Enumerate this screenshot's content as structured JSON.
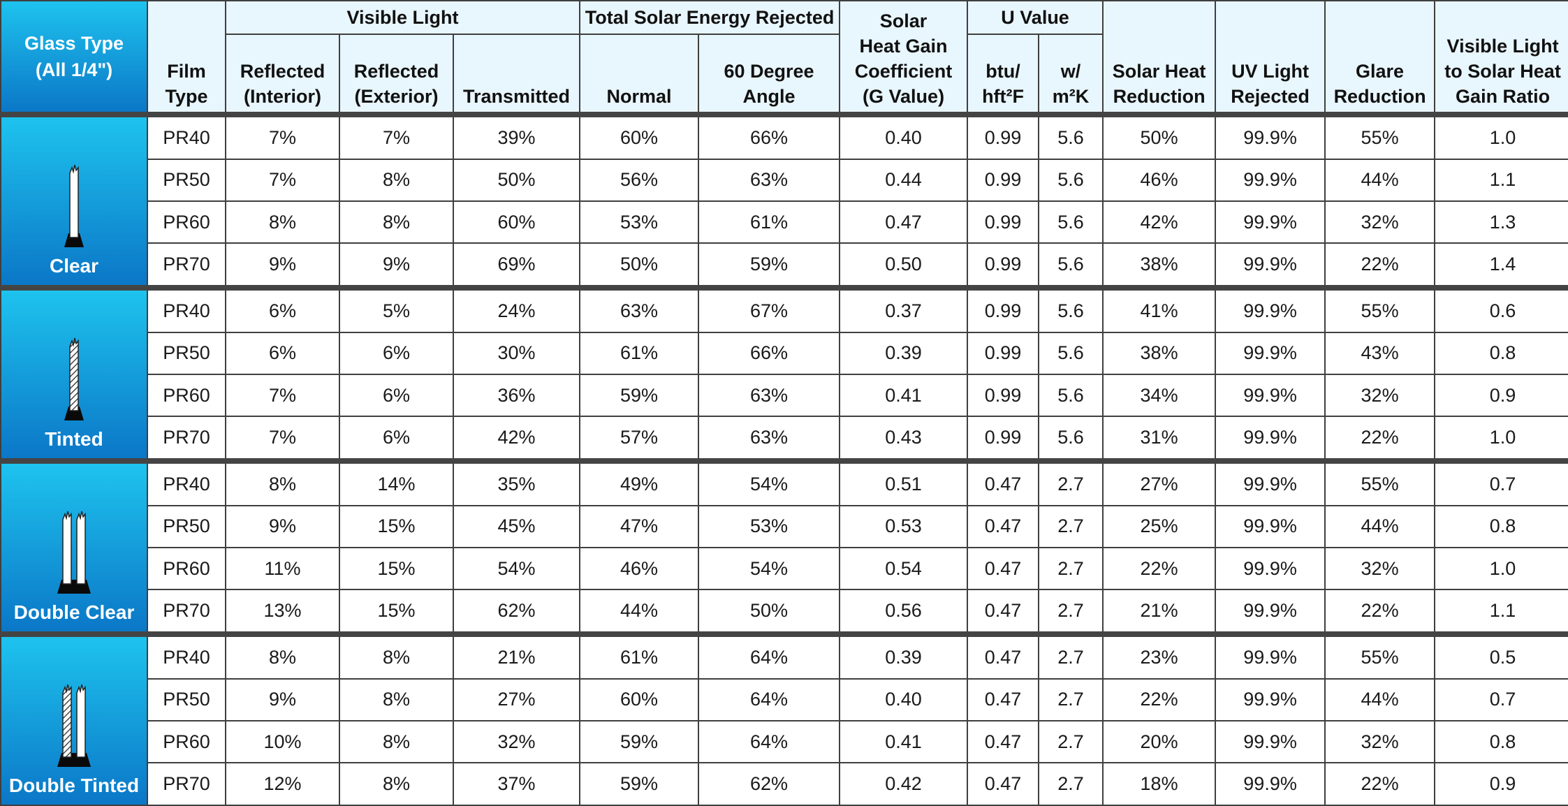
{
  "headers": {
    "glass_type": [
      "Glass Type",
      "(All 1/4\")"
    ],
    "film_type": [
      "Film",
      "Type"
    ],
    "visible_light": "Visible Light",
    "reflected_interior": [
      "Reflected",
      "(Interior)"
    ],
    "reflected_exterior": [
      "Reflected",
      "(Exterior)"
    ],
    "transmitted": "Transmitted",
    "total_solar_energy_rejected": "Total Solar Energy Rejected",
    "normal": "Normal",
    "sixty_degree": [
      "60 Degree",
      "Angle"
    ],
    "shgc": [
      "Solar",
      "Heat Gain",
      "Coefficient",
      "(G Value)"
    ],
    "u_value": "U Value",
    "btu": [
      "btu/",
      "hft²F"
    ],
    "wm2k": [
      "w/",
      "m²K"
    ],
    "solar_heat_reduction": [
      "Solar Heat",
      "Reduction"
    ],
    "uv_light_rejected": [
      "UV Light",
      "Rejected"
    ],
    "glare_reduction": [
      "Glare",
      "Reduction"
    ],
    "vl_to_shg_ratio": [
      "Visible Light",
      "to Solar Heat",
      "Gain Ratio"
    ]
  },
  "groups": [
    {
      "glass_type": "Clear",
      "icon": "single-clear-glass-icon",
      "rows": [
        [
          "PR40",
          "7%",
          "7%",
          "39%",
          "60%",
          "66%",
          "0.40",
          "0.99",
          "5.6",
          "50%",
          "99.9%",
          "55%",
          "1.0"
        ],
        [
          "PR50",
          "7%",
          "8%",
          "50%",
          "56%",
          "63%",
          "0.44",
          "0.99",
          "5.6",
          "46%",
          "99.9%",
          "44%",
          "1.1"
        ],
        [
          "PR60",
          "8%",
          "8%",
          "60%",
          "53%",
          "61%",
          "0.47",
          "0.99",
          "5.6",
          "42%",
          "99.9%",
          "32%",
          "1.3"
        ],
        [
          "PR70",
          "9%",
          "9%",
          "69%",
          "50%",
          "59%",
          "0.50",
          "0.99",
          "5.6",
          "38%",
          "99.9%",
          "22%",
          "1.4"
        ]
      ]
    },
    {
      "glass_type": "Tinted",
      "icon": "single-tinted-glass-icon",
      "rows": [
        [
          "PR40",
          "6%",
          "5%",
          "24%",
          "63%",
          "67%",
          "0.37",
          "0.99",
          "5.6",
          "41%",
          "99.9%",
          "55%",
          "0.6"
        ],
        [
          "PR50",
          "6%",
          "6%",
          "30%",
          "61%",
          "66%",
          "0.39",
          "0.99",
          "5.6",
          "38%",
          "99.9%",
          "43%",
          "0.8"
        ],
        [
          "PR60",
          "7%",
          "6%",
          "36%",
          "59%",
          "63%",
          "0.41",
          "0.99",
          "5.6",
          "34%",
          "99.9%",
          "32%",
          "0.9"
        ],
        [
          "PR70",
          "7%",
          "6%",
          "42%",
          "57%",
          "63%",
          "0.43",
          "0.99",
          "5.6",
          "31%",
          "99.9%",
          "22%",
          "1.0"
        ]
      ]
    },
    {
      "glass_type": "Double Clear",
      "icon": "double-clear-glass-icon",
      "rows": [
        [
          "PR40",
          "8%",
          "14%",
          "35%",
          "49%",
          "54%",
          "0.51",
          "0.47",
          "2.7",
          "27%",
          "99.9%",
          "55%",
          "0.7"
        ],
        [
          "PR50",
          "9%",
          "15%",
          "45%",
          "47%",
          "53%",
          "0.53",
          "0.47",
          "2.7",
          "25%",
          "99.9%",
          "44%",
          "0.8"
        ],
        [
          "PR60",
          "11%",
          "15%",
          "54%",
          "46%",
          "54%",
          "0.54",
          "0.47",
          "2.7",
          "22%",
          "99.9%",
          "32%",
          "1.0"
        ],
        [
          "PR70",
          "13%",
          "15%",
          "62%",
          "44%",
          "50%",
          "0.56",
          "0.47",
          "2.7",
          "21%",
          "99.9%",
          "22%",
          "1.1"
        ]
      ]
    },
    {
      "glass_type": "Double Tinted",
      "icon": "double-tinted-glass-icon",
      "rows": [
        [
          "PR40",
          "8%",
          "8%",
          "21%",
          "61%",
          "64%",
          "0.39",
          "0.47",
          "2.7",
          "23%",
          "99.9%",
          "55%",
          "0.5"
        ],
        [
          "PR50",
          "9%",
          "8%",
          "27%",
          "60%",
          "64%",
          "0.40",
          "0.47",
          "2.7",
          "22%",
          "99.9%",
          "44%",
          "0.7"
        ],
        [
          "PR60",
          "10%",
          "8%",
          "32%",
          "59%",
          "64%",
          "0.41",
          "0.47",
          "2.7",
          "20%",
          "99.9%",
          "32%",
          "0.8"
        ],
        [
          "PR70",
          "12%",
          "8%",
          "37%",
          "59%",
          "62%",
          "0.42",
          "0.47",
          "2.7",
          "18%",
          "99.9%",
          "22%",
          "0.9"
        ]
      ]
    }
  ],
  "colors": {
    "glass_type_gradient_top": "#1ec3ee",
    "glass_type_gradient_bottom": "#0b77c7",
    "header_background": "#e8f6fd",
    "border": "#3f3f3f"
  }
}
